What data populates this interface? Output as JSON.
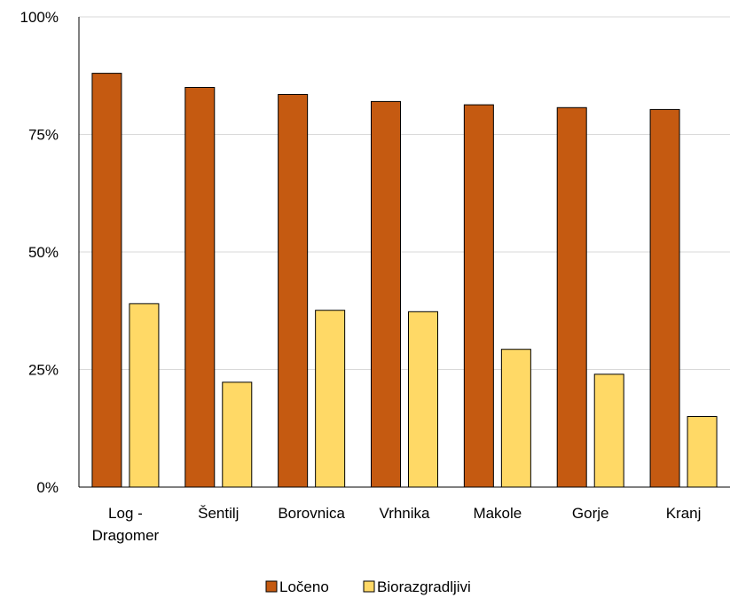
{
  "chart_data": {
    "type": "bar",
    "title": "",
    "xlabel": "",
    "ylabel": "",
    "ylim": [
      0,
      100
    ],
    "yticks": [
      "0%",
      "25%",
      "50%",
      "75%",
      "100%"
    ],
    "grid": true,
    "legend_position": "bottom",
    "categories": [
      [
        "Log -",
        "Dragomer"
      ],
      [
        "Šentilj"
      ],
      [
        "Borovnica"
      ],
      [
        "Vrhnika"
      ],
      [
        "Makole"
      ],
      [
        "Gorje"
      ],
      [
        "Kranj"
      ]
    ],
    "series": [
      {
        "name": "Ločeno",
        "color": "#C55A11",
        "values": [
          88,
          85,
          83.5,
          82,
          81.3,
          80.7,
          80.3
        ]
      },
      {
        "name": "Biorazgradljivi",
        "color": "#FFD966",
        "values": [
          39,
          22.3,
          37.6,
          37.3,
          29.3,
          24,
          15
        ]
      }
    ]
  }
}
